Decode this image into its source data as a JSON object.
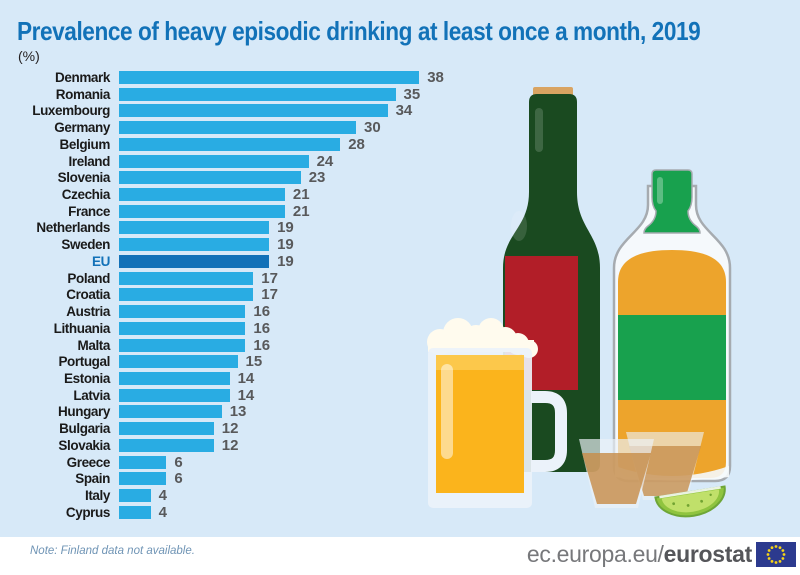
{
  "page": {
    "unit_label": "(%)"
  },
  "chart_data": {
    "type": "bar",
    "orientation": "horizontal",
    "title": "Prevalence of heavy episodic drinking at least once a month, 2019",
    "unit": "%",
    "categories": [
      "Denmark",
      "Romania",
      "Luxembourg",
      "Germany",
      "Belgium",
      "Ireland",
      "Slovenia",
      "Czechia",
      "France",
      "Netherlands",
      "Sweden",
      "EU",
      "Poland",
      "Croatia",
      "Austria",
      "Lithuania",
      "Malta",
      "Portugal",
      "Estonia",
      "Latvia",
      "Hungary",
      "Bulgaria",
      "Slovakia",
      "Greece",
      "Spain",
      "Italy",
      "Cyprus"
    ],
    "values": [
      38,
      35,
      34,
      30,
      28,
      24,
      23,
      21,
      21,
      19,
      19,
      19,
      17,
      17,
      16,
      16,
      16,
      15,
      14,
      14,
      13,
      12,
      12,
      6,
      6,
      4,
      4
    ],
    "highlight_category": "EU",
    "xlim": [
      0,
      40
    ],
    "value_labels_shown": true,
    "grid": false,
    "legend": false
  },
  "note": "Note: Finland data not available.",
  "footer": {
    "url_regular": "ec.europa.eu/",
    "url_bold": "eurostat",
    "flag_icon": "eu-flag"
  },
  "colors": {
    "background": "#D7E9F8",
    "bar": "#29ACE3",
    "bar_eu_highlight": "#1271B8",
    "title_text": "#1272B8",
    "value_text": "#58595B",
    "label_text": "#1A1A1A",
    "note_text": "#6F94B5",
    "footer_background": "#FFFFFF",
    "flag_blue": "#2C3A8E",
    "flag_stars": "#F7D417",
    "wine_bottle_green": "#1A4A20",
    "wine_label_red": "#B21E28",
    "cork_tan": "#D9A462",
    "whiskey_amber": "#EDA42C",
    "whiskey_green": "#18A14E",
    "beer_gold": "#FBB41C",
    "foam_white": "#FFFBEE",
    "lime_green": "#8FC43F"
  },
  "illustration": {
    "items": [
      "wine-bottle",
      "whiskey-bottle",
      "beer-mug",
      "shot-glass-left",
      "shot-glass-right",
      "lime-wedge"
    ]
  }
}
